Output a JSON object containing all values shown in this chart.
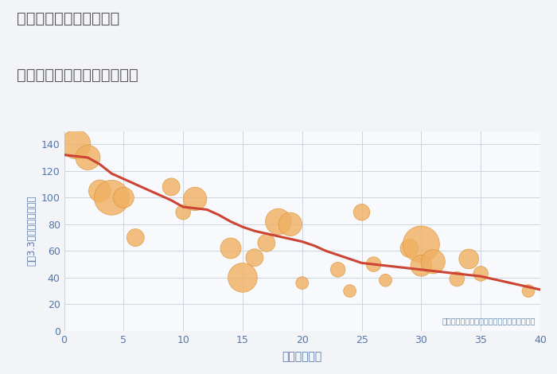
{
  "title_line1": "奈良県奈良市北永井町の",
  "title_line2": "築年数別中古マンション価格",
  "xlabel": "築年数（年）",
  "ylabel": "坪（3.3㎡）単価（万円）",
  "annotation": "円の大きさは、取引のあった物件面積を示す",
  "bg_color": "#f2f4f7",
  "plot_bg_color": "#f7f9fc",
  "grid_color": "#ccd5e0",
  "bubble_color": "#f0b060",
  "bubble_edge_color": "#d99030",
  "line_color": "#cc4433",
  "title_color": "#555555",
  "axis_color": "#5577aa",
  "annotation_color": "#6688aa",
  "xlim": [
    0,
    40
  ],
  "ylim": [
    0,
    150
  ],
  "xticks": [
    0,
    5,
    10,
    15,
    20,
    25,
    30,
    35,
    40
  ],
  "yticks": [
    0,
    20,
    40,
    60,
    80,
    100,
    120,
    140
  ],
  "scatter_x": [
    1,
    2,
    3,
    4,
    5,
    6,
    9,
    10,
    11,
    14,
    15,
    16,
    17,
    18,
    19,
    20,
    23,
    24,
    25,
    26,
    27,
    29,
    30,
    30,
    31,
    33,
    34,
    35,
    39
  ],
  "scatter_y": [
    140,
    130,
    105,
    100,
    100,
    70,
    108,
    89,
    99,
    62,
    40,
    55,
    66,
    82,
    80,
    36,
    46,
    30,
    89,
    50,
    38,
    62,
    65,
    49,
    52,
    39,
    54,
    43,
    30
  ],
  "scatter_size": [
    700,
    500,
    400,
    1000,
    350,
    250,
    250,
    180,
    450,
    350,
    700,
    250,
    250,
    550,
    450,
    130,
    180,
    130,
    220,
    180,
    130,
    270,
    1100,
    370,
    470,
    180,
    320,
    180,
    130
  ],
  "trend_x": [
    0,
    1,
    2,
    3,
    4,
    5,
    6,
    7,
    8,
    9,
    10,
    11,
    12,
    13,
    14,
    15,
    16,
    17,
    18,
    19,
    20,
    21,
    22,
    23,
    24,
    25,
    26,
    27,
    28,
    29,
    30,
    31,
    32,
    33,
    34,
    35,
    36,
    37,
    38,
    39,
    40
  ],
  "trend_y": [
    132,
    131,
    130,
    125,
    118,
    114,
    110,
    106,
    102,
    98,
    93,
    92,
    91,
    87,
    82,
    78,
    75,
    73,
    71,
    69,
    67,
    64,
    60,
    57,
    54,
    51,
    50,
    49,
    48,
    47,
    46,
    45,
    44,
    43,
    42,
    41,
    39,
    37,
    35,
    33,
    31
  ]
}
